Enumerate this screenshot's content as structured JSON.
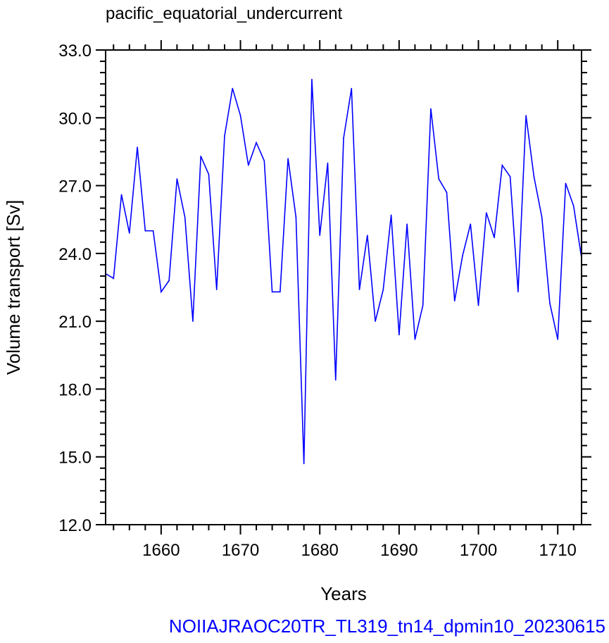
{
  "chart_data": {
    "type": "line",
    "title": "pacific_equatorial_undercurrent",
    "xlabel": "Years",
    "ylabel": "Volume transport [Sv]",
    "footer": "NOIIAJRAOC20TR_TL319_tn14_dpmin10_20230615",
    "xlim": [
      1653,
      1713
    ],
    "ylim": [
      12.0,
      33.0
    ],
    "x_ticks": [
      1660,
      1670,
      1680,
      1690,
      1700,
      1710
    ],
    "x_tick_labels": [
      "1660",
      "1670",
      "1680",
      "1690",
      "1700",
      "1710"
    ],
    "y_ticks": [
      12.0,
      15.0,
      18.0,
      21.0,
      24.0,
      27.0,
      30.0,
      33.0
    ],
    "y_tick_labels": [
      "12.0",
      "15.0",
      "18.0",
      "21.0",
      "24.0",
      "27.0",
      "30.0",
      "33.0"
    ],
    "grid": false,
    "series": [
      {
        "color": "#0000ff",
        "x": [
          1653,
          1654,
          1655,
          1656,
          1657,
          1658,
          1659,
          1660,
          1661,
          1662,
          1663,
          1664,
          1665,
          1666,
          1667,
          1668,
          1669,
          1670,
          1671,
          1672,
          1673,
          1674,
          1675,
          1676,
          1677,
          1678,
          1679,
          1680,
          1681,
          1682,
          1683,
          1684,
          1685,
          1686,
          1687,
          1688,
          1689,
          1690,
          1691,
          1692,
          1693,
          1694,
          1695,
          1696,
          1697,
          1698,
          1699,
          1700,
          1701,
          1702,
          1703,
          1704,
          1705,
          1706,
          1707,
          1708,
          1709,
          1710,
          1711,
          1712,
          1713
        ],
        "values": [
          23.1,
          22.9,
          26.6,
          24.9,
          28.7,
          25.0,
          25.0,
          22.3,
          22.8,
          27.3,
          25.6,
          21.0,
          28.3,
          27.5,
          22.4,
          29.2,
          31.3,
          30.1,
          27.9,
          28.9,
          28.1,
          22.3,
          22.3,
          28.2,
          25.6,
          14.7,
          31.7,
          24.8,
          28.0,
          18.4,
          29.1,
          31.3,
          22.4,
          24.8,
          21.0,
          22.4,
          25.7,
          20.4,
          25.3,
          20.2,
          21.7,
          30.4,
          27.3,
          26.7,
          21.9,
          23.9,
          25.3,
          21.7,
          25.8,
          24.7,
          27.9,
          27.4,
          22.3,
          30.1,
          27.4,
          25.6,
          21.8,
          20.2,
          27.1,
          26.1,
          23.8
        ]
      }
    ]
  }
}
